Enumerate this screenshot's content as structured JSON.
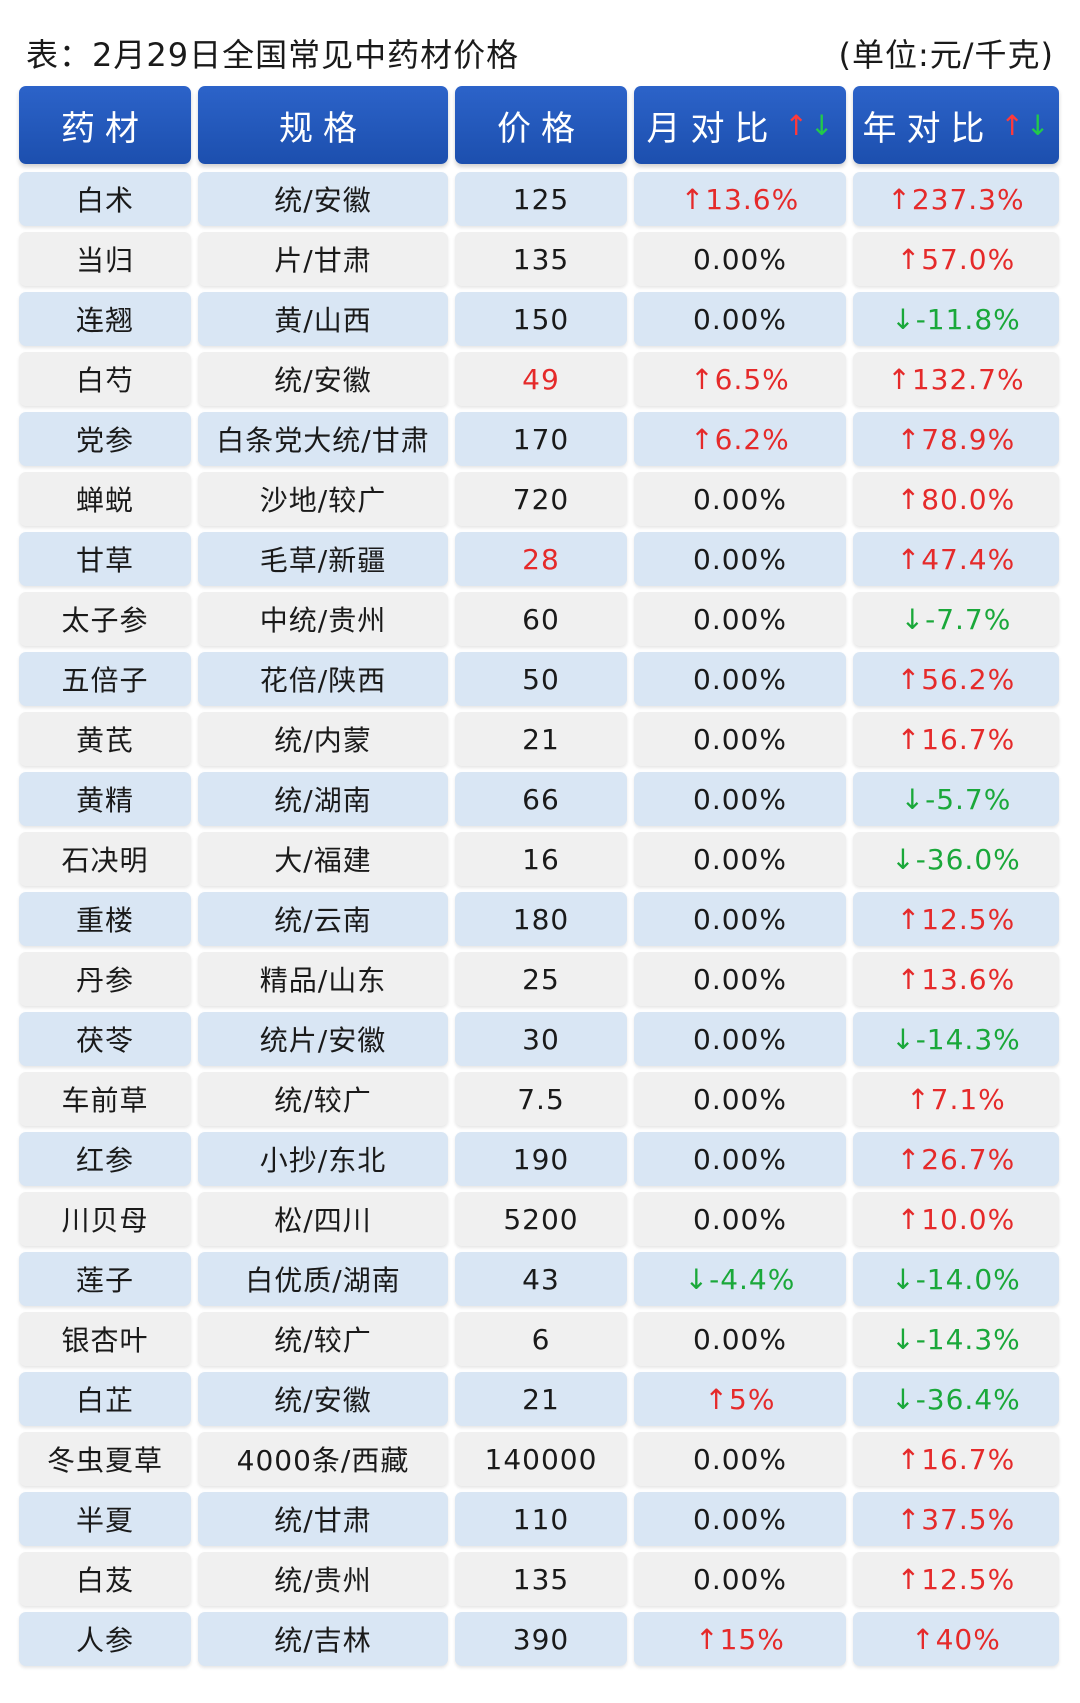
{
  "caption": {
    "title": "表：2月29日全国常见中药材价格",
    "unit": "(单位:元/千克)"
  },
  "headers": {
    "name": "药材",
    "spec": "规格",
    "price": "价格",
    "month": "月对比",
    "year": "年对比",
    "arrow_up": "↑",
    "arrow_down": "↓"
  },
  "colors": {
    "header_bg": "#1c4fae",
    "row_blue": "#d9e6f4",
    "row_gray": "#f0f0f0",
    "up": "#e52a2a",
    "down": "#1aa83a"
  },
  "rows": [
    {
      "name": "白术",
      "spec": "统/安徽",
      "price": "125",
      "price_up": false,
      "month": "↑13.6%",
      "month_dir": "up",
      "year": "↑237.3%",
      "year_dir": "up"
    },
    {
      "name": "当归",
      "spec": "片/甘肃",
      "price": "135",
      "price_up": false,
      "month": "0.00%",
      "month_dir": "flat",
      "year": "↑57.0%",
      "year_dir": "up"
    },
    {
      "name": "连翘",
      "spec": "黄/山西",
      "price": "150",
      "price_up": false,
      "month": "0.00%",
      "month_dir": "flat",
      "year": "↓-11.8%",
      "year_dir": "down"
    },
    {
      "name": "白芍",
      "spec": "统/安徽",
      "price": "49",
      "price_up": true,
      "month": "↑6.5%",
      "month_dir": "up",
      "year": "↑132.7%",
      "year_dir": "up"
    },
    {
      "name": "党参",
      "spec": "白条党大统/甘肃",
      "price": "170",
      "price_up": false,
      "month": "↑6.2%",
      "month_dir": "up",
      "year": "↑78.9%",
      "year_dir": "up"
    },
    {
      "name": "蝉蜕",
      "spec": "沙地/较广",
      "price": "720",
      "price_up": false,
      "month": "0.00%",
      "month_dir": "flat",
      "year": "↑80.0%",
      "year_dir": "up"
    },
    {
      "name": "甘草",
      "spec": "毛草/新疆",
      "price": "28",
      "price_up": true,
      "month": "0.00%",
      "month_dir": "flat",
      "year": "↑47.4%",
      "year_dir": "up"
    },
    {
      "name": "太子参",
      "spec": "中统/贵州",
      "price": "60",
      "price_up": false,
      "month": "0.00%",
      "month_dir": "flat",
      "year": "↓-7.7%",
      "year_dir": "down"
    },
    {
      "name": "五倍子",
      "spec": "花倍/陕西",
      "price": "50",
      "price_up": false,
      "month": "0.00%",
      "month_dir": "flat",
      "year": "↑56.2%",
      "year_dir": "up"
    },
    {
      "name": "黄芪",
      "spec": "统/内蒙",
      "price": "21",
      "price_up": false,
      "month": "0.00%",
      "month_dir": "flat",
      "year": "↑16.7%",
      "year_dir": "up"
    },
    {
      "name": "黄精",
      "spec": "统/湖南",
      "price": "66",
      "price_up": false,
      "month": "0.00%",
      "month_dir": "flat",
      "year": "↓-5.7%",
      "year_dir": "down"
    },
    {
      "name": "石决明",
      "spec": "大/福建",
      "price": "16",
      "price_up": false,
      "month": "0.00%",
      "month_dir": "flat",
      "year": "↓-36.0%",
      "year_dir": "down"
    },
    {
      "name": "重楼",
      "spec": "统/云南",
      "price": "180",
      "price_up": false,
      "month": "0.00%",
      "month_dir": "flat",
      "year": "↑12.5%",
      "year_dir": "up"
    },
    {
      "name": "丹参",
      "spec": "精品/山东",
      "price": "25",
      "price_up": false,
      "month": "0.00%",
      "month_dir": "flat",
      "year": "↑13.6%",
      "year_dir": "up"
    },
    {
      "name": "茯苓",
      "spec": "统片/安徽",
      "price": "30",
      "price_up": false,
      "month": "0.00%",
      "month_dir": "flat",
      "year": "↓-14.3%",
      "year_dir": "down"
    },
    {
      "name": "车前草",
      "spec": "统/较广",
      "price": "7.5",
      "price_up": false,
      "month": "0.00%",
      "month_dir": "flat",
      "year": "↑7.1%",
      "year_dir": "up"
    },
    {
      "name": "红参",
      "spec": "小抄/东北",
      "price": "190",
      "price_up": false,
      "month": "0.00%",
      "month_dir": "flat",
      "year": "↑26.7%",
      "year_dir": "up"
    },
    {
      "name": "川贝母",
      "spec": "松/四川",
      "price": "5200",
      "price_up": false,
      "month": "0.00%",
      "month_dir": "flat",
      "year": "↑10.0%",
      "year_dir": "up"
    },
    {
      "name": "莲子",
      "spec": "白优质/湖南",
      "price": "43",
      "price_up": false,
      "month": "↓-4.4%",
      "month_dir": "down",
      "year": "↓-14.0%",
      "year_dir": "down"
    },
    {
      "name": "银杏叶",
      "spec": "统/较广",
      "price": "6",
      "price_up": false,
      "month": "0.00%",
      "month_dir": "flat",
      "year": "↓-14.3%",
      "year_dir": "down"
    },
    {
      "name": "白芷",
      "spec": "统/安徽",
      "price": "21",
      "price_up": false,
      "month": "↑5%",
      "month_dir": "up",
      "year": "↓-36.4%",
      "year_dir": "down"
    },
    {
      "name": "冬虫夏草",
      "spec": "4000条/西藏",
      "price": "140000",
      "price_up": false,
      "month": "0.00%",
      "month_dir": "flat",
      "year": "↑16.7%",
      "year_dir": "up"
    },
    {
      "name": "半夏",
      "spec": "统/甘肃",
      "price": "110",
      "price_up": false,
      "month": "0.00%",
      "month_dir": "flat",
      "year": "↑37.5%",
      "year_dir": "up"
    },
    {
      "name": "白芨",
      "spec": "统/贵州",
      "price": "135",
      "price_up": false,
      "month": "0.00%",
      "month_dir": "flat",
      "year": "↑12.5%",
      "year_dir": "up"
    },
    {
      "name": "人参",
      "spec": "统/吉林",
      "price": "390",
      "price_up": false,
      "month": "↑15%",
      "month_dir": "up",
      "year": "↑40%",
      "year_dir": "up"
    }
  ]
}
